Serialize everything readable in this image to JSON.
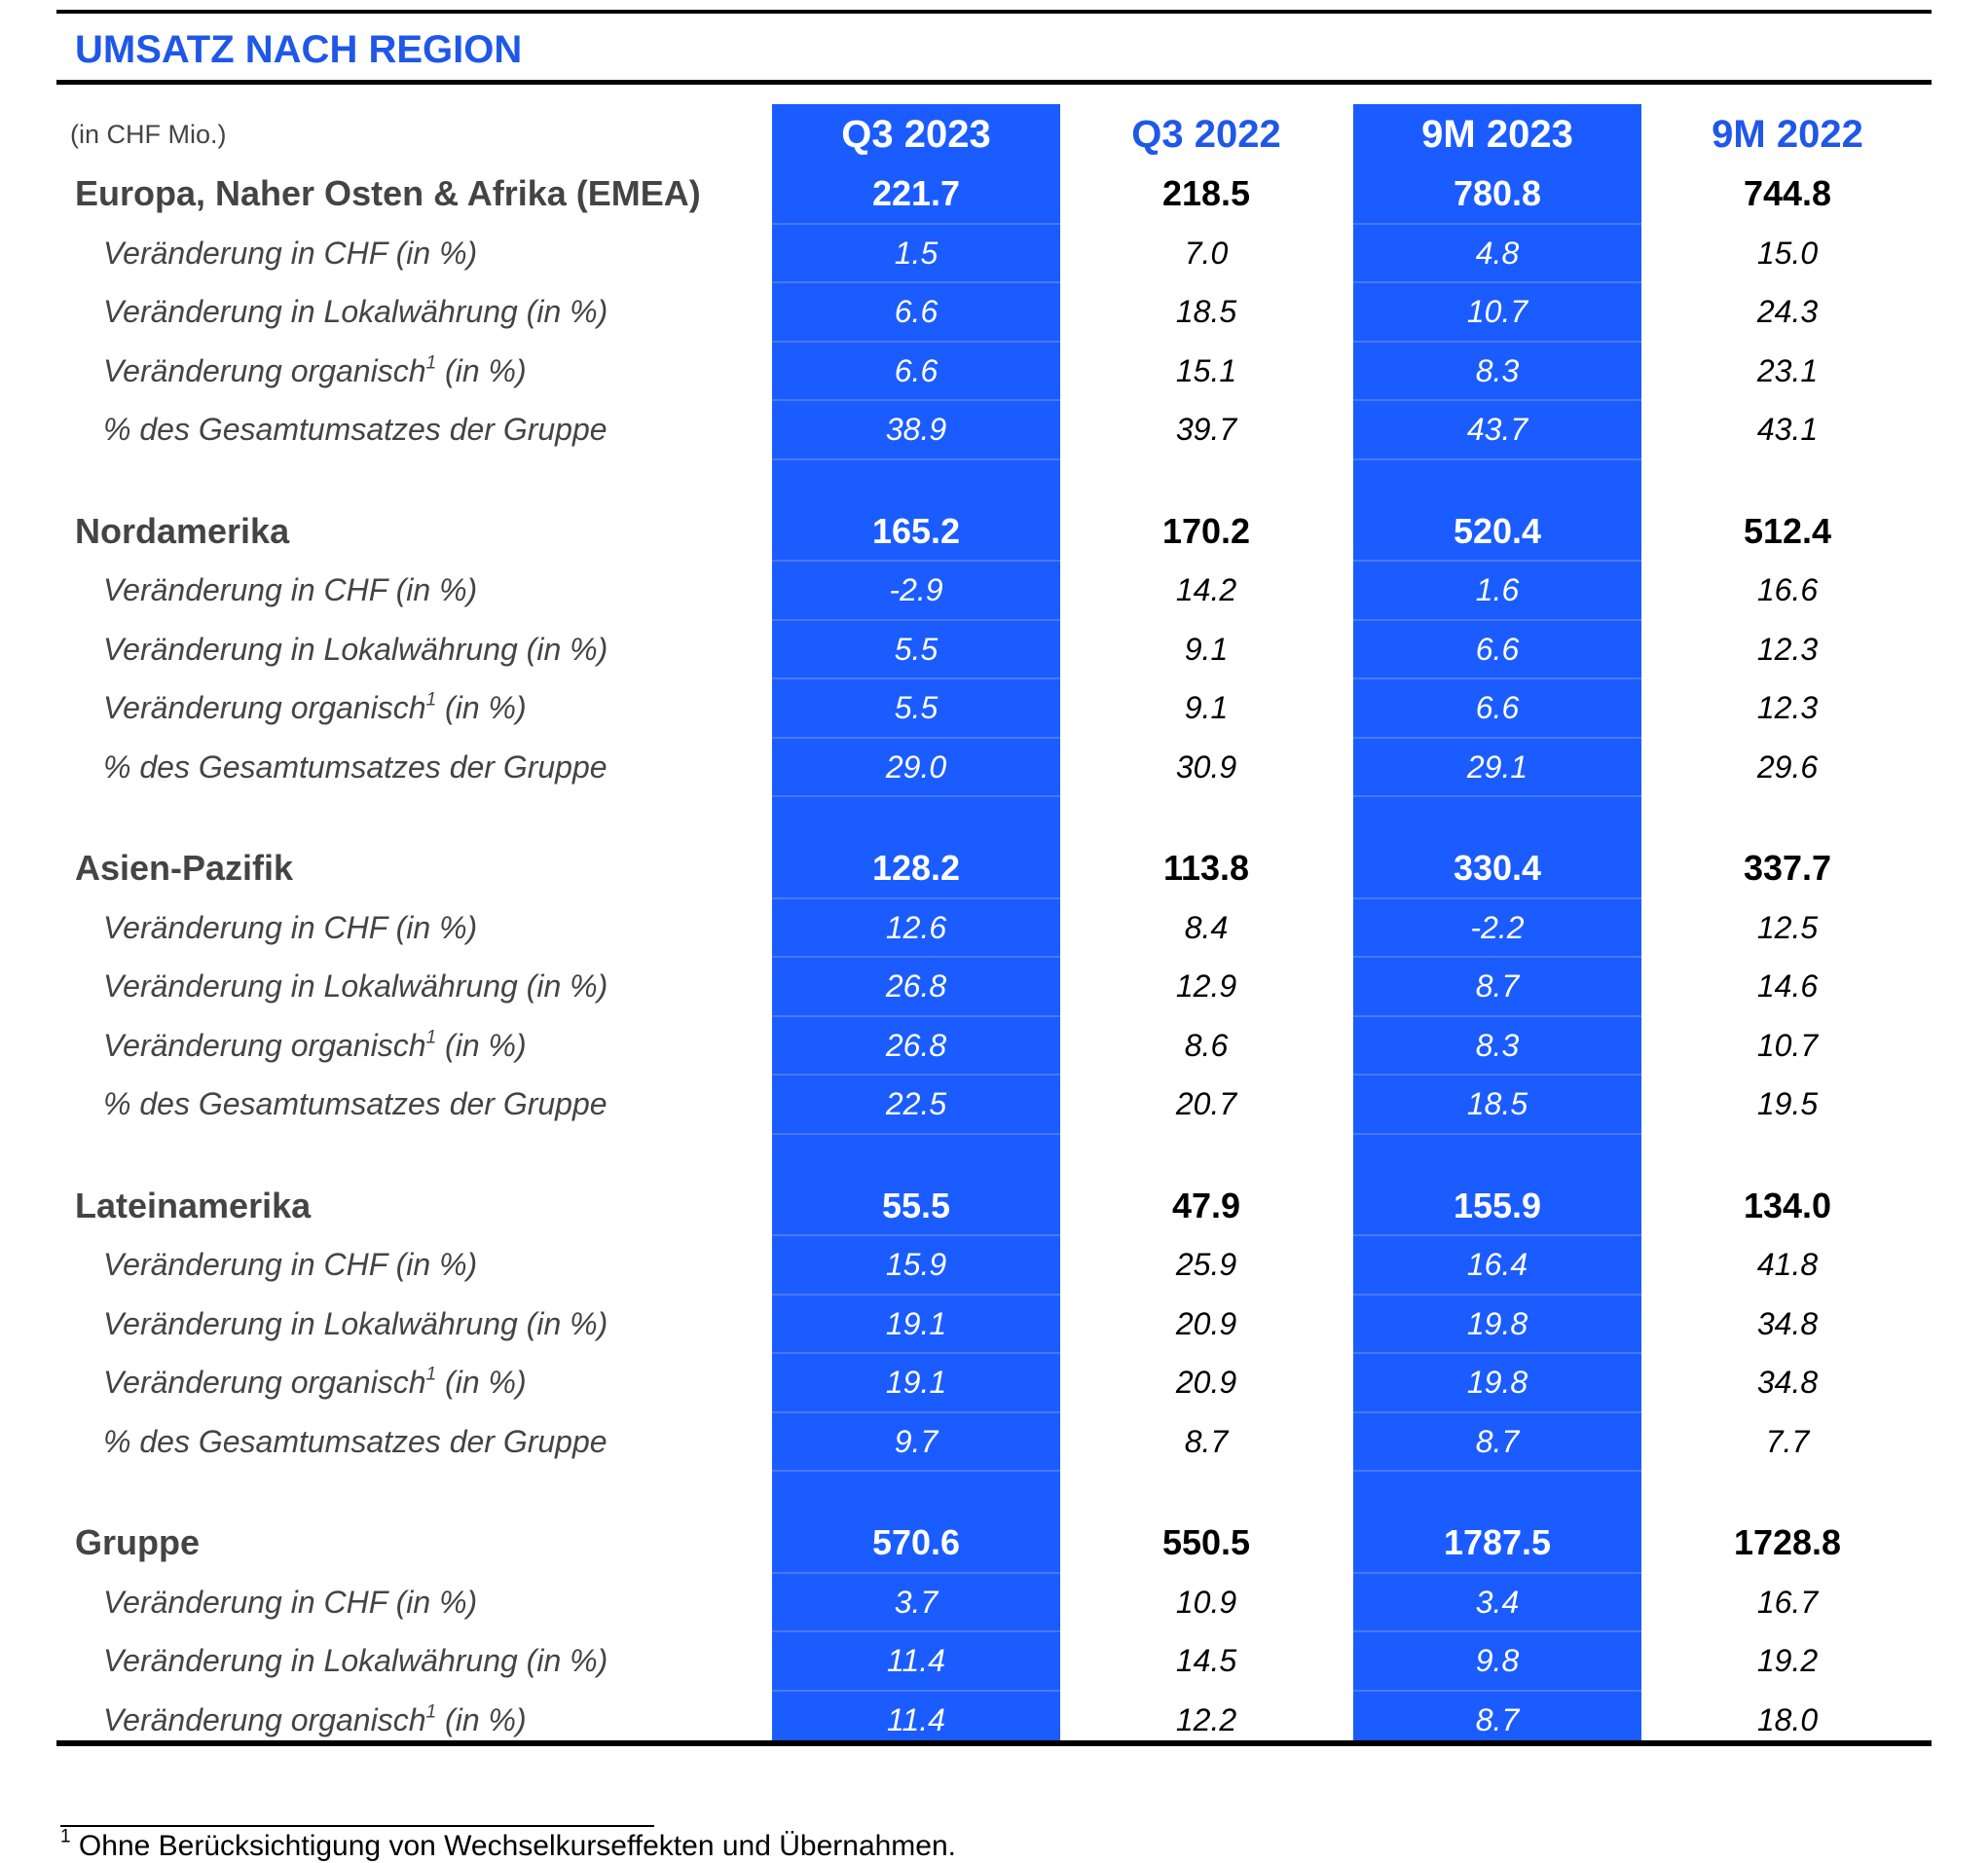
{
  "title": "UMSATZ NACH REGION",
  "unit": "(in CHF Mio.)",
  "columns": [
    "Q3 2023",
    "Q3 2022",
    "9M 2023",
    "9M 2022"
  ],
  "footnote": {
    "mark": "1",
    "text": "Ohne Berücksichtigung von Wechselkurseffekten und Übernahmen."
  },
  "sections": [
    {
      "region": "Europa, Naher Osten & Afrika (EMEA)",
      "values": [
        "221.7",
        "218.5",
        "780.8",
        "744.8"
      ],
      "rows": [
        {
          "label": "Veränderung in CHF (in %)",
          "values": [
            "1.5",
            "7.0",
            "4.8",
            "15.0"
          ]
        },
        {
          "label": "Veränderung in Lokalwährung (in %)",
          "values": [
            "6.6",
            "18.5",
            "10.7",
            "24.3"
          ]
        },
        {
          "label": "Veränderung organisch",
          "sup": "1",
          "suffix": " (in %)",
          "values": [
            "6.6",
            "15.1",
            "8.3",
            "23.1"
          ]
        },
        {
          "label": "% des Gesamtumsatzes der Gruppe",
          "values": [
            "38.9",
            "39.7",
            "43.7",
            "43.1"
          ]
        }
      ]
    },
    {
      "region": "Nordamerika",
      "values": [
        "165.2",
        "170.2",
        "520.4",
        "512.4"
      ],
      "rows": [
        {
          "label": "Veränderung in CHF (in %)",
          "values": [
            "-2.9",
            "14.2",
            "1.6",
            "16.6"
          ]
        },
        {
          "label": "Veränderung in Lokalwährung (in %)",
          "values": [
            "5.5",
            "9.1",
            "6.6",
            "12.3"
          ]
        },
        {
          "label": "Veränderung organisch",
          "sup": "1",
          "suffix": " (in %)",
          "values": [
            "5.5",
            "9.1",
            "6.6",
            "12.3"
          ]
        },
        {
          "label": "% des Gesamtumsatzes der Gruppe",
          "values": [
            "29.0",
            "30.9",
            "29.1",
            "29.6"
          ]
        }
      ]
    },
    {
      "region": "Asien-Pazifik",
      "values": [
        "128.2",
        "113.8",
        "330.4",
        "337.7"
      ],
      "rows": [
        {
          "label": "Veränderung in CHF (in %)",
          "values": [
            "12.6",
            "8.4",
            "-2.2",
            "12.5"
          ]
        },
        {
          "label": "Veränderung in Lokalwährung (in %)",
          "values": [
            "26.8",
            "12.9",
            "8.7",
            "14.6"
          ]
        },
        {
          "label": "Veränderung organisch",
          "sup": "1",
          "suffix": " (in %)",
          "values": [
            "26.8",
            "8.6",
            "8.3",
            "10.7"
          ]
        },
        {
          "label": "% des Gesamtumsatzes der Gruppe",
          "values": [
            "22.5",
            "20.7",
            "18.5",
            "19.5"
          ]
        }
      ]
    },
    {
      "region": "Lateinamerika",
      "values": [
        "55.5",
        "47.9",
        "155.9",
        "134.0"
      ],
      "rows": [
        {
          "label": "Veränderung in CHF (in %)",
          "values": [
            "15.9",
            "25.9",
            "16.4",
            "41.8"
          ]
        },
        {
          "label": "Veränderung in Lokalwährung (in %)",
          "values": [
            "19.1",
            "20.9",
            "19.8",
            "34.8"
          ]
        },
        {
          "label": "Veränderung organisch",
          "sup": "1",
          "suffix": " (in %)",
          "values": [
            "19.1",
            "20.9",
            "19.8",
            "34.8"
          ]
        },
        {
          "label": "% des Gesamtumsatzes der Gruppe",
          "values": [
            "9.7",
            "8.7",
            "8.7",
            "7.7"
          ]
        }
      ]
    },
    {
      "region": "Gruppe",
      "values": [
        "570.6",
        "550.5",
        "1787.5",
        "1728.8"
      ],
      "rows": [
        {
          "label": "Veränderung in CHF (in %)",
          "values": [
            "3.7",
            "10.9",
            "3.4",
            "16.7"
          ]
        },
        {
          "label": "Veränderung in Lokalwährung (in %)",
          "values": [
            "11.4",
            "14.5",
            "9.8",
            "19.2"
          ]
        },
        {
          "label": "Veränderung organisch",
          "sup": "1",
          "suffix": " (in %)",
          "values": [
            "11.4",
            "12.2",
            "8.7",
            "18.0"
          ]
        }
      ]
    }
  ]
}
